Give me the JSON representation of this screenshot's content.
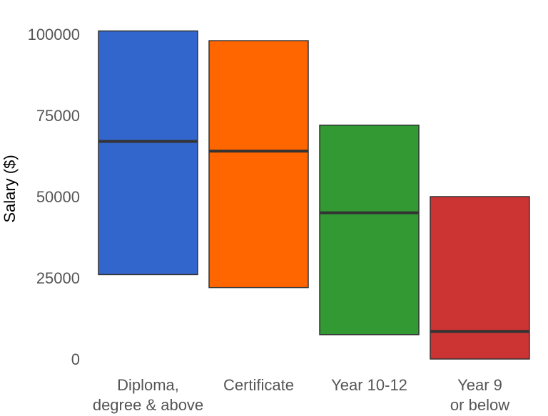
{
  "chart_data": {
    "type": "crossbar",
    "ylabel": "Salary ($)",
    "xlabel": "",
    "ylim": [
      0,
      101000
    ],
    "yticks": [
      0,
      25000,
      50000,
      75000,
      100000
    ],
    "ytick_labels": [
      "0",
      "25000",
      "50000",
      "75000",
      "100000"
    ],
    "grid": false,
    "legend": "none",
    "categories": [
      {
        "lines": [
          "Diploma,",
          "degree & above"
        ],
        "low": 26000,
        "mid": 67000,
        "high": 101000,
        "color": "#3366cc"
      },
      {
        "lines": [
          "Certificate"
        ],
        "low": 22000,
        "mid": 64000,
        "high": 98000,
        "color": "#ff6600"
      },
      {
        "lines": [
          "Year 10-12"
        ],
        "low": 7500,
        "mid": 45000,
        "high": 72000,
        "color": "#339933"
      },
      {
        "lines": [
          "Year 9",
          "or below"
        ],
        "low": 0,
        "mid": 8500,
        "high": 50000,
        "color": "#cc3333"
      }
    ]
  }
}
